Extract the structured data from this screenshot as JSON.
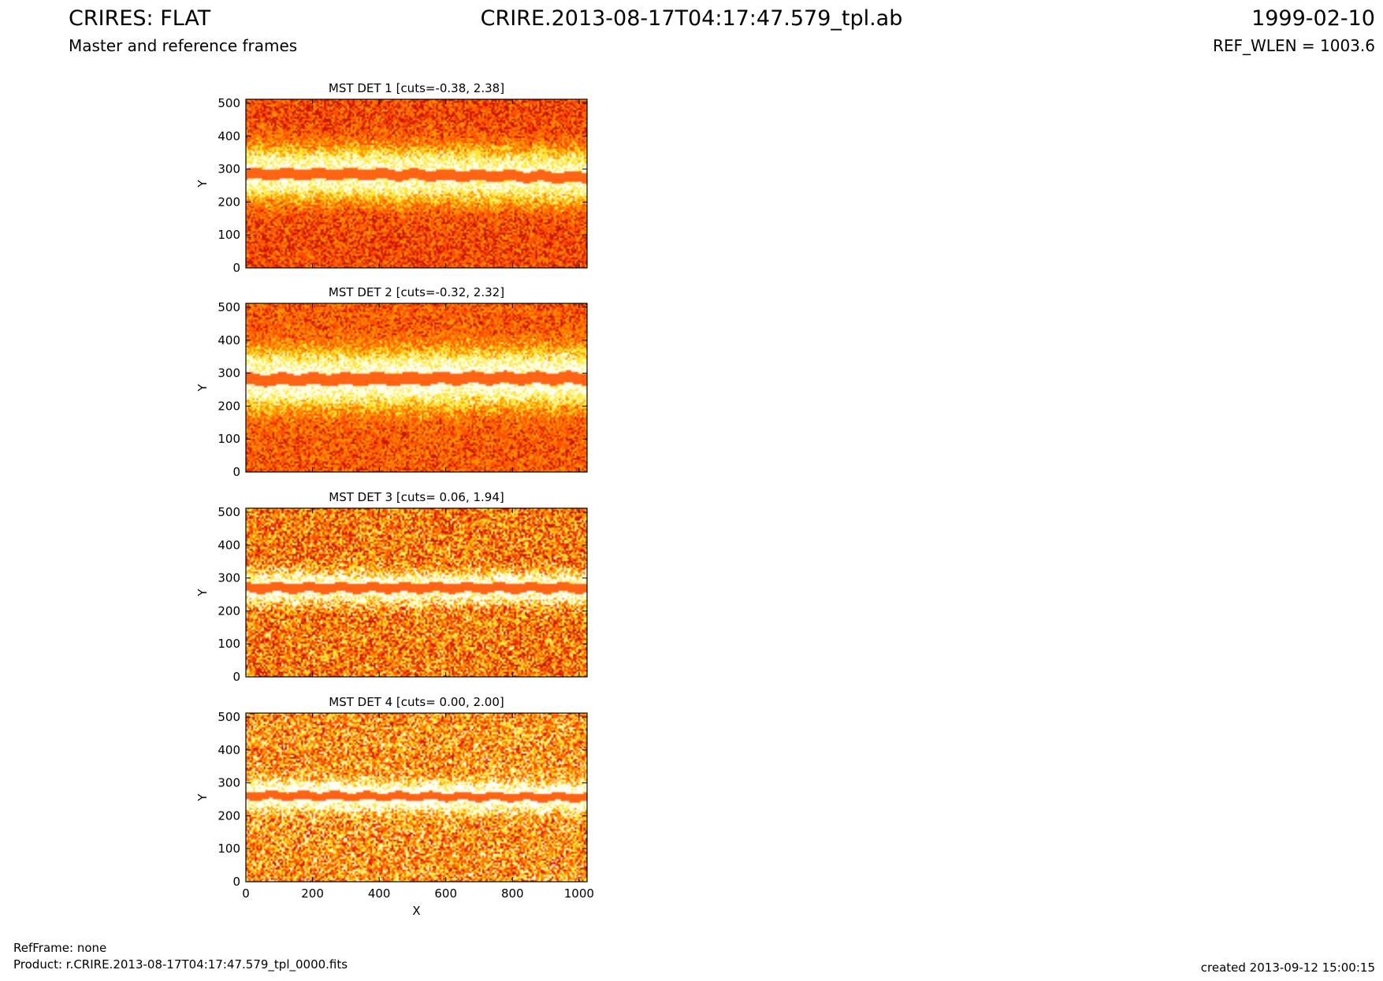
{
  "header": {
    "title_left": "CRIRES: FLAT",
    "subtitle_left": "Master and reference frames",
    "title_center": "CRIRE.2013-08-17T04:17:47.579_tpl.ab",
    "title_right": "1999-02-10",
    "subtitle_right": "REF_WLEN = 1003.6"
  },
  "footer": {
    "refframe": "RefFrame: none",
    "product": "Product: r.CRIRE.2013-08-17T04:17:47.579_tpl_0000.fits",
    "created": "created 2013-09-12 15:00:15"
  },
  "chart_data": [
    {
      "type": "heatmap",
      "title": "MST DET 1 [cuts=-0.38, 2.38]",
      "detector": 1,
      "cuts": [
        -0.38,
        2.38
      ],
      "xlabel": "",
      "ylabel": "Y",
      "xlim": [
        0,
        1024
      ],
      "ylim": [
        0,
        512
      ],
      "xticks": [],
      "yticks": [
        0,
        100,
        200,
        300,
        400,
        500
      ],
      "band_center": [
        285,
        285,
        280,
        275
      ],
      "band_half_width": 16,
      "colors": [
        "#cc1100",
        "#ff5500",
        "#ffaa00",
        "#ffff66",
        "#ffffff"
      ]
    },
    {
      "type": "heatmap",
      "title": "MST DET 2 [cuts=-0.32, 2.32]",
      "detector": 2,
      "cuts": [
        -0.32,
        2.32
      ],
      "xlabel": "",
      "ylabel": "Y",
      "xlim": [
        0,
        1024
      ],
      "ylim": [
        0,
        512
      ],
      "xticks": [],
      "yticks": [
        0,
        100,
        200,
        300,
        400,
        500
      ],
      "band_center": [
        280,
        282,
        285,
        285
      ],
      "band_half_width": 18,
      "colors": [
        "#cc1100",
        "#ff5500",
        "#ffaa00",
        "#ffff66",
        "#ffffff"
      ]
    },
    {
      "type": "heatmap",
      "title": "MST DET 3 [cuts= 0.06, 1.94]",
      "detector": 3,
      "cuts": [
        0.06,
        1.94
      ],
      "xlabel": "",
      "ylabel": "Y",
      "xlim": [
        0,
        1024
      ],
      "ylim": [
        0,
        512
      ],
      "xticks": [],
      "yticks": [
        0,
        100,
        200,
        300,
        400,
        500
      ],
      "band_center": [
        270,
        270,
        270,
        270
      ],
      "band_half_width": 14,
      "colors": [
        "#cc1100",
        "#ff5500",
        "#ffaa00",
        "#ffff66",
        "#ffffff"
      ]
    },
    {
      "type": "heatmap",
      "title": "MST DET 4 [cuts= 0.00, 2.00]",
      "detector": 4,
      "cuts": [
        0.0,
        2.0
      ],
      "xlabel": "X",
      "ylabel": "Y",
      "xlim": [
        0,
        1024
      ],
      "ylim": [
        0,
        512
      ],
      "xticks": [
        0,
        200,
        400,
        600,
        800,
        1000
      ],
      "yticks": [
        0,
        100,
        200,
        300,
        400,
        500
      ],
      "band_center": [
        262,
        260,
        258,
        256
      ],
      "band_half_width": 12,
      "colors": [
        "#cc1100",
        "#ff5500",
        "#ffaa00",
        "#ffff66",
        "#ffffff"
      ]
    }
  ]
}
